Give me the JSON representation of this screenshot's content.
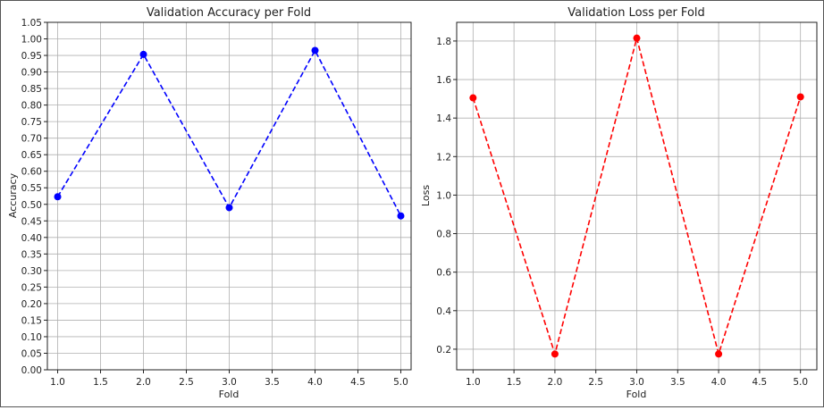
{
  "chart_data": [
    {
      "type": "line",
      "title": "Validation Accuracy per Fold",
      "xlabel": "Fold",
      "ylabel": "Accuracy",
      "x": [
        1.0,
        2.0,
        3.0,
        4.0,
        5.0
      ],
      "series": [
        {
          "values": [
            0.523,
            0.953,
            0.49,
            0.965,
            0.465
          ],
          "color": "#0000ff",
          "linestyle": "dashed",
          "marker": "circle"
        }
      ],
      "xlim": [
        0.88,
        5.12
      ],
      "ylim": [
        0.0,
        1.05
      ],
      "xticks": [
        "1.0",
        "1.5",
        "2.0",
        "2.5",
        "3.0",
        "3.5",
        "4.0",
        "4.5",
        "5.0"
      ],
      "yticks": [
        "0.00",
        "0.05",
        "0.10",
        "0.15",
        "0.20",
        "0.25",
        "0.30",
        "0.35",
        "0.40",
        "0.45",
        "0.50",
        "0.55",
        "0.60",
        "0.65",
        "0.70",
        "0.75",
        "0.80",
        "0.85",
        "0.90",
        "0.95",
        "1.00",
        "1.05"
      ],
      "grid": true
    },
    {
      "type": "line",
      "title": "Validation Loss per Fold",
      "xlabel": "Fold",
      "ylabel": "Loss",
      "x": [
        1.0,
        2.0,
        3.0,
        4.0,
        5.0
      ],
      "series": [
        {
          "values": [
            1.505,
            0.175,
            1.815,
            0.175,
            1.51
          ],
          "color": "#ff0000",
          "linestyle": "dashed",
          "marker": "circle"
        }
      ],
      "xlim": [
        0.8,
        5.2
      ],
      "ylim": [
        0.093,
        1.897
      ],
      "xticks": [
        "1.0",
        "1.5",
        "2.0",
        "2.5",
        "3.0",
        "3.5",
        "4.0",
        "4.5",
        "5.0"
      ],
      "yticks": [
        "0.2",
        "0.4",
        "0.6",
        "0.8",
        "1.0",
        "1.2",
        "1.4",
        "1.6",
        "1.8"
      ],
      "grid": true
    }
  ]
}
